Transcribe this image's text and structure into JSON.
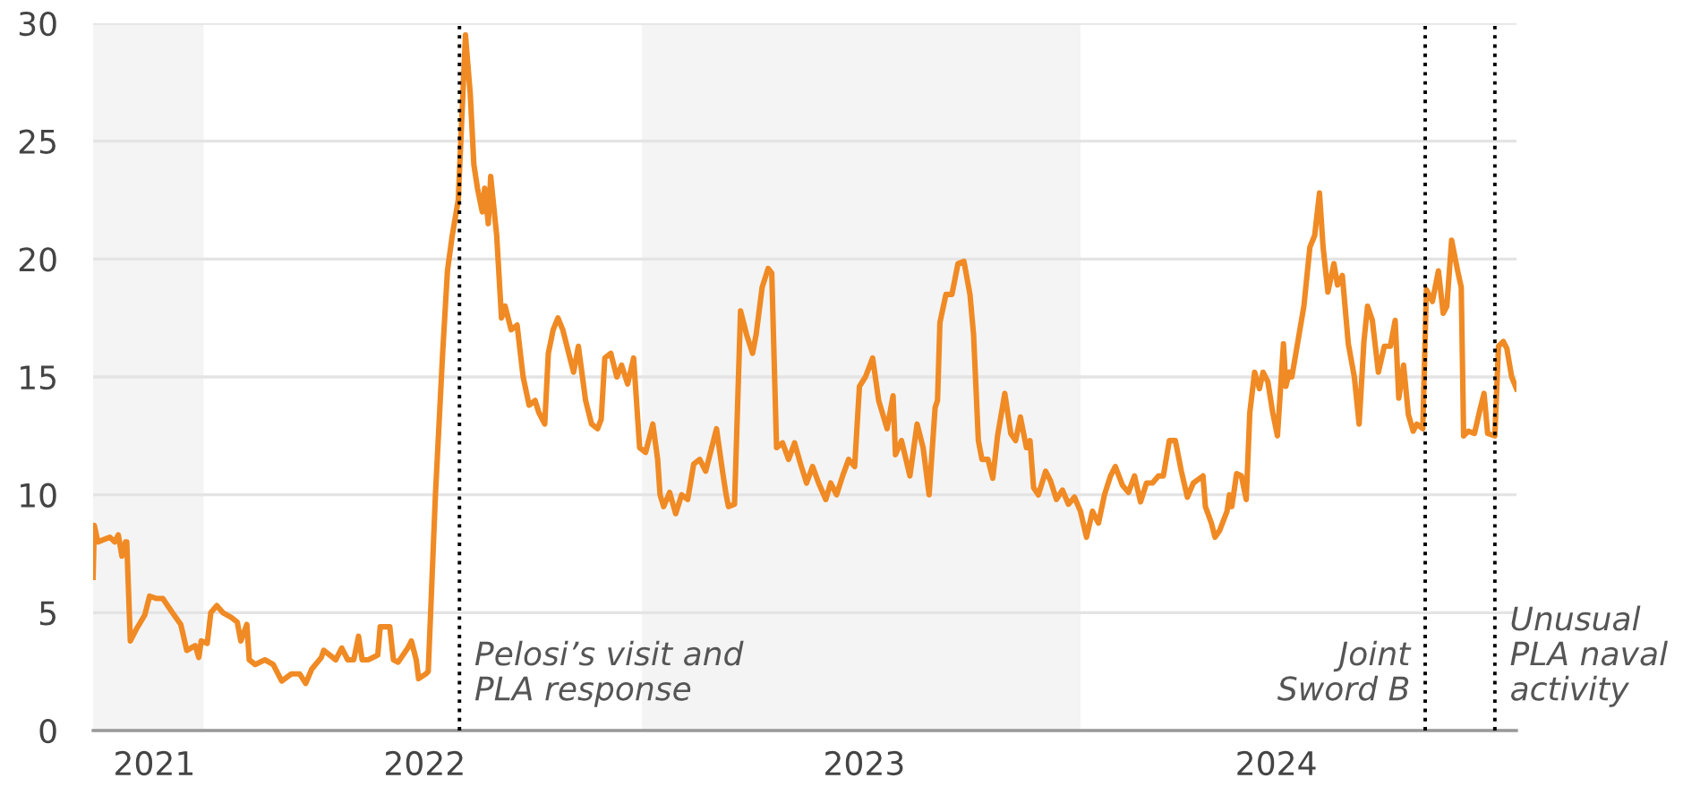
{
  "chart_data": {
    "type": "line",
    "x": [
      "2021-10-01",
      "2021-10-02",
      "2021-10-05",
      "2021-10-10",
      "2021-10-15",
      "2021-10-19",
      "2021-10-22",
      "2021-10-25",
      "2021-10-28",
      "2021-10-29",
      "2021-11-01",
      "2021-11-06",
      "2021-11-13",
      "2021-11-17",
      "2021-11-23",
      "2021-11-28",
      "2021-12-06",
      "2021-12-13",
      "2021-12-18",
      "2021-12-25",
      "2021-12-28",
      "2021-12-30",
      "2022-01-04",
      "2022-01-07",
      "2022-01-12",
      "2022-01-17",
      "2022-01-24",
      "2022-01-29",
      "2022-02-01",
      "2022-02-06",
      "2022-02-08",
      "2022-02-13",
      "2022-02-21",
      "2022-02-28",
      "2022-03-07",
      "2022-03-15",
      "2022-03-22",
      "2022-03-27",
      "2022-04-01",
      "2022-04-09",
      "2022-04-11",
      "2022-04-21",
      "2022-04-26",
      "2022-05-01",
      "2022-05-06",
      "2022-05-10",
      "2022-05-13",
      "2022-05-18",
      "2022-05-26",
      "2022-05-28",
      "2022-06-05",
      "2022-06-08",
      "2022-06-12",
      "2022-06-20",
      "2022-06-23",
      "2022-06-27",
      "2022-06-29",
      "2022-07-05",
      "2022-07-07",
      "2022-07-09",
      "2022-07-13",
      "2022-07-17",
      "2022-07-19",
      "2022-07-23",
      "2022-07-27",
      "2022-08-01",
      "2022-08-07",
      "2022-08-11",
      "2022-08-14",
      "2022-08-17",
      "2022-08-21",
      "2022-08-23",
      "2022-08-26",
      "2022-08-28",
      "2022-09-02",
      "2022-09-06",
      "2022-09-09",
      "2022-09-14",
      "2022-09-19",
      "2022-09-24",
      "2022-09-29",
      "2022-10-04",
      "2022-10-07",
      "2022-10-12",
      "2022-10-15",
      "2022-10-19",
      "2022-10-23",
      "2022-10-27",
      "2022-11-01",
      "2022-11-05",
      "2022-11-09",
      "2022-11-15",
      "2022-11-20",
      "2022-11-25",
      "2022-11-28",
      "2022-12-01",
      "2022-12-06",
      "2022-12-11",
      "2022-12-15",
      "2022-12-20",
      "2022-12-25",
      "2022-12-30",
      "2023-01-04",
      "2023-01-10",
      "2023-01-14",
      "2023-01-16",
      "2023-01-19",
      "2023-01-24",
      "2023-01-29",
      "2023-02-03",
      "2023-02-08",
      "2023-02-13",
      "2023-02-18",
      "2023-02-23",
      "2023-02-28",
      "2023-03-04",
      "2023-03-09",
      "2023-03-12",
      "2023-03-14",
      "2023-03-19",
      "2023-03-24",
      "2023-03-29",
      "2023-04-03",
      "2023-04-06",
      "2023-04-11",
      "2023-04-16",
      "2023-04-19",
      "2023-04-23",
      "2023-04-28",
      "2023-05-03",
      "2023-05-08",
      "2023-05-13",
      "2023-05-18",
      "2023-05-23",
      "2023-05-28",
      "2023-06-03",
      "2023-06-07",
      "2023-06-12",
      "2023-06-17",
      "2023-06-22",
      "2023-06-27",
      "2023-07-01",
      "2023-07-06",
      "2023-07-12",
      "2023-07-17",
      "2023-07-24",
      "2023-07-29",
      "2023-07-31",
      "2023-08-05",
      "2023-08-12",
      "2023-08-18",
      "2023-08-23",
      "2023-08-28",
      "2023-09-02",
      "2023-09-04",
      "2023-09-06",
      "2023-09-11",
      "2023-09-16",
      "2023-09-21",
      "2023-09-26",
      "2023-10-01",
      "2023-10-04",
      "2023-10-08",
      "2023-10-11",
      "2023-10-16",
      "2023-10-20",
      "2023-10-24",
      "2023-10-30",
      "2023-11-04",
      "2023-11-08",
      "2023-11-12",
      "2023-11-17",
      "2023-11-20",
      "2023-11-23",
      "2023-11-27",
      "2023-12-03",
      "2023-12-07",
      "2023-12-12",
      "2023-12-17",
      "2023-12-22",
      "2023-12-27",
      "2024-01-01",
      "2024-01-06",
      "2024-01-11",
      "2024-01-16",
      "2024-01-21",
      "2024-01-26",
      "2024-01-30",
      "2024-02-05",
      "2024-02-10",
      "2024-02-15",
      "2024-02-20",
      "2024-02-25",
      "2024-03-01",
      "2024-03-06",
      "2024-03-10",
      "2024-03-15",
      "2024-03-20",
      "2024-03-25",
      "2024-03-30",
      "2024-04-04",
      "2024-04-12",
      "2024-04-14",
      "2024-04-19",
      "2024-04-22",
      "2024-04-26",
      "2024-05-02",
      "2024-05-04",
      "2024-05-06",
      "2024-05-10",
      "2024-05-14",
      "2024-05-18",
      "2024-05-21",
      "2024-05-25",
      "2024-05-29",
      "2024-06-01",
      "2024-06-05",
      "2024-06-09",
      "2024-06-13",
      "2024-06-18",
      "2024-06-20",
      "2024-06-23",
      "2024-06-25",
      "2024-06-30",
      "2024-07-05",
      "2024-07-10",
      "2024-07-14",
      "2024-07-18",
      "2024-07-21",
      "2024-07-25",
      "2024-07-30",
      "2024-08-02",
      "2024-08-06",
      "2024-08-11",
      "2024-08-16",
      "2024-08-20",
      "2024-08-24",
      "2024-08-27",
      "2024-08-31",
      "2024-09-05",
      "2024-09-10",
      "2024-09-15",
      "2024-09-19",
      "2024-09-22",
      "2024-09-26",
      "2024-09-30",
      "2024-10-04",
      "2024-10-07",
      "2024-10-12",
      "2024-10-15",
      "2024-10-20",
      "2024-10-25",
      "2024-10-29",
      "2024-11-01",
      "2024-11-05",
      "2024-11-10",
      "2024-11-13",
      "2024-11-15",
      "2024-11-19",
      "2024-11-24",
      "2024-11-29",
      "2024-12-02",
      "2024-12-05",
      "2024-12-11",
      "2024-12-14",
      "2024-12-18",
      "2024-12-21",
      "2024-12-25",
      "2024-12-29"
    ],
    "series": [
      {
        "color": "#f08a24",
        "values": [
          6.5,
          8.7,
          8.0,
          8.1,
          8.2,
          8.0,
          8.3,
          7.4,
          8.0,
          8.0,
          3.8,
          4.3,
          4.9,
          5.7,
          5.6,
          5.6,
          5.0,
          4.5,
          3.4,
          3.6,
          3.1,
          3.8,
          3.7,
          5.0,
          5.3,
          5.0,
          4.8,
          4.6,
          3.8,
          4.5,
          3.0,
          2.8,
          3.0,
          2.8,
          2.1,
          2.4,
          2.4,
          2.0,
          2.6,
          3.1,
          3.4,
          3.0,
          3.5,
          3.0,
          3.0,
          4.0,
          3.0,
          3.0,
          3.2,
          4.4,
          4.4,
          3.0,
          2.9,
          3.5,
          3.8,
          3.0,
          2.2,
          2.4,
          2.5,
          5.0,
          10.0,
          14.0,
          16.0,
          19.5,
          21.0,
          22.5,
          29.5,
          27.0,
          24.0,
          23.0,
          22.0,
          23.0,
          21.5,
          23.5,
          21.0,
          17.5,
          18.0,
          17.0,
          17.2,
          15.0,
          13.8,
          14.0,
          13.5,
          13.0,
          16.0,
          17.0,
          17.5,
          17.0,
          16.0,
          15.2,
          16.3,
          14.0,
          13.0,
          12.8,
          13.2,
          15.8,
          16.0,
          15.0,
          15.5,
          14.7,
          15.8,
          12.0,
          11.8,
          13.0,
          11.5,
          10.0,
          9.5,
          10.1,
          9.2,
          10.0,
          9.8,
          11.3,
          11.5,
          11.0,
          12.0,
          12.8,
          11.0,
          10.0,
          9.5,
          9.6,
          17.8,
          16.8,
          16.0,
          16.8,
          18.8,
          19.6,
          19.4,
          12.0,
          12.2,
          11.5,
          12.2,
          11.3,
          10.5,
          11.2,
          10.5,
          9.8,
          10.5,
          10.0,
          10.8,
          11.5,
          11.2,
          14.6,
          15.0,
          15.8,
          14.0,
          12.8,
          14.2,
          11.7,
          12.3,
          10.8,
          13.0,
          12.0,
          10.0,
          13.7,
          14.0,
          17.3,
          18.5,
          18.5,
          19.8,
          19.9,
          18.5,
          16.8,
          12.3,
          11.5,
          11.5,
          10.7,
          12.5,
          14.3,
          12.6,
          12.3,
          13.3,
          12.0,
          12.3,
          10.3,
          10.0,
          11.0,
          10.6,
          9.8,
          10.2,
          9.6,
          9.9,
          9.3,
          8.2,
          9.3,
          8.8,
          10.0,
          10.8,
          11.2,
          10.4,
          10.1,
          10.8,
          9.7,
          10.5,
          10.5,
          10.8,
          10.8,
          12.3,
          12.3,
          11.0,
          9.9,
          10.5,
          10.8,
          9.5,
          8.8,
          8.2,
          8.5,
          9.3,
          10.0,
          9.5,
          10.9,
          10.8,
          9.8,
          13.5,
          15.2,
          14.5,
          15.2,
          14.8,
          13.5,
          12.5,
          16.4,
          14.6,
          15.2,
          15.0,
          16.5,
          18.0,
          20.5,
          21.0,
          22.8,
          20.5,
          18.6,
          19.8,
          18.9,
          19.3,
          16.4,
          15.0,
          13.0,
          16.5,
          18.0,
          17.4,
          15.2,
          16.3,
          16.3,
          17.4,
          14.1,
          15.5,
          13.4,
          12.7,
          13.0,
          12.8,
          18.7,
          18.2,
          19.5,
          17.7,
          18.0,
          20.8,
          19.5,
          18.8,
          12.5,
          12.7,
          12.6,
          13.7,
          14.3,
          12.6,
          12.5,
          16.3,
          16.5,
          16.2,
          15.0,
          14.5
        ]
      }
    ],
    "xlim": [
      "2021-10-01",
      "2024-12-29"
    ],
    "xticks": [
      {
        "value": "2021-11-21",
        "label": "2021"
      },
      {
        "value": "2022-07-04",
        "label": "2022"
      },
      {
        "value": "2023-07-05",
        "label": "2023"
      },
      {
        "value": "2024-06-12",
        "label": "2024"
      }
    ],
    "ylim": [
      0,
      30
    ],
    "yticks": [
      0,
      5,
      10,
      15,
      20,
      25,
      30
    ],
    "grid": "y",
    "bands": [
      {
        "axis": "x",
        "from": "2021-10-01",
        "to": "2022-01-01",
        "color": "#f4f4f4"
      },
      {
        "axis": "x",
        "from": "2023-01-01",
        "to": "2024-01-01",
        "color": "#f4f4f4"
      }
    ],
    "ref_lines": [
      {
        "axis": "x",
        "value": "2022-08-02",
        "label": "Pelosi’s visit and\nPLA response",
        "color": "#000000",
        "line_style": "dotted"
      },
      {
        "axis": "x",
        "value": "2024-10-14",
        "label": "Joint\nSword B",
        "color": "#000000",
        "line_style": "dotted"
      },
      {
        "axis": "x",
        "value": "2024-12-11",
        "label": "Unusual\nPLA naval\nactivity",
        "color": "#000000",
        "line_style": "dotted"
      }
    ]
  }
}
